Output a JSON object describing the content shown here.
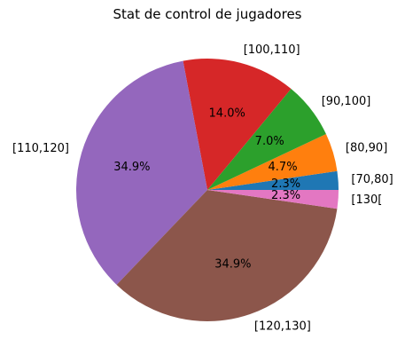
{
  "chart_data": {
    "type": "pie",
    "title": "Stat de control de jugadores",
    "start_angle_deg": 0,
    "direction": "counterclockwise",
    "slices": [
      {
        "label": "[70,80]",
        "percent": 2.3,
        "pct_text": "2.3%",
        "color": "#1f77b4"
      },
      {
        "label": "[80,90]",
        "percent": 4.7,
        "pct_text": "4.7%",
        "color": "#ff7f0e"
      },
      {
        "label": "[90,100]",
        "percent": 7.0,
        "pct_text": "7.0%",
        "color": "#2ca02c"
      },
      {
        "label": "[100,110]",
        "percent": 14.0,
        "pct_text": "14.0%",
        "color": "#d62728"
      },
      {
        "label": "[110,120]",
        "percent": 34.9,
        "pct_text": "34.9%",
        "color": "#9467bd"
      },
      {
        "label": "[120,130]",
        "percent": 34.9,
        "pct_text": "34.9%",
        "color": "#8c564b"
      },
      {
        "label": "[130[",
        "percent": 2.3,
        "pct_text": "2.3%",
        "color": "#e377c2"
      }
    ]
  }
}
